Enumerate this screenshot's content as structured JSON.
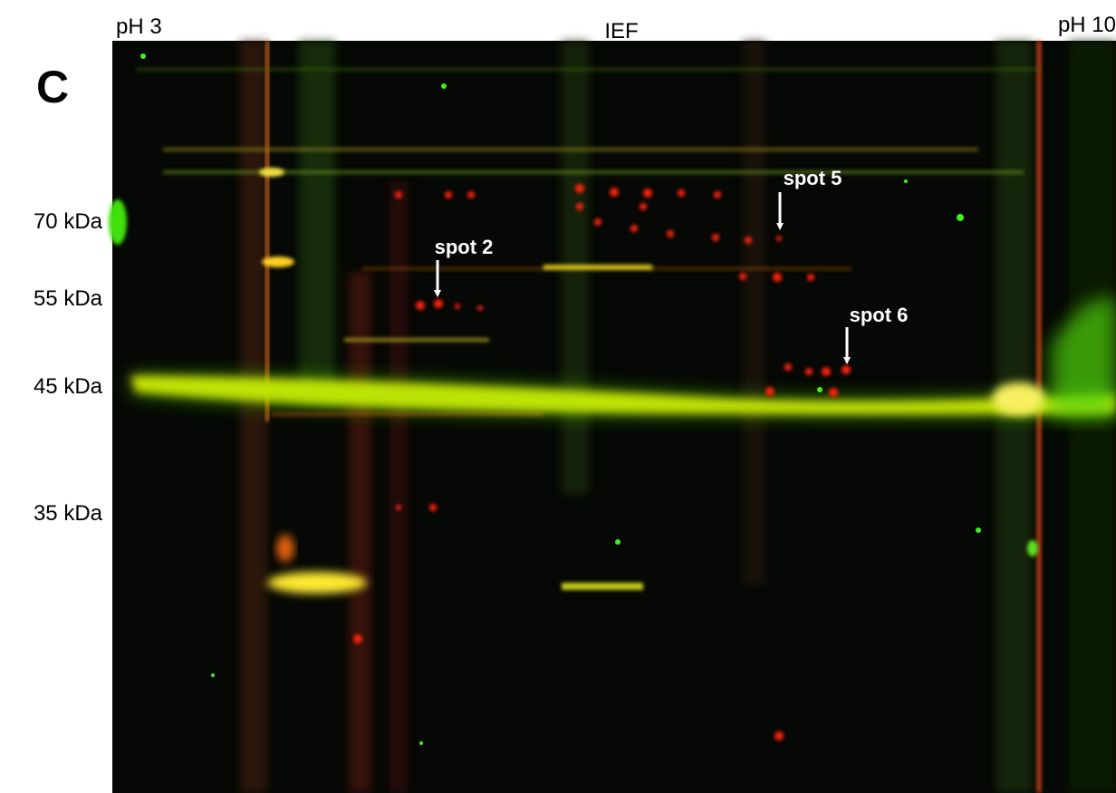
{
  "panel_label": "C",
  "top_labels": {
    "left": "pH 3",
    "center": "IEF",
    "right": "pH 10"
  },
  "mw_markers": [
    "70 kDa",
    "55 kDa",
    "45 kDa",
    "35 kDa"
  ],
  "annotations": [
    "spot 2",
    "spot 5",
    "spot 6"
  ]
}
